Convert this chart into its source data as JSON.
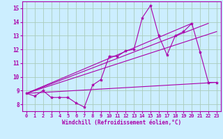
{
  "xlabel": "Windchill (Refroidissement éolien,°C)",
  "bg_color": "#cceeff",
  "grid_color": "#aaccbb",
  "line_color": "#aa00aa",
  "xlim": [
    -0.5,
    23.5
  ],
  "ylim": [
    7.5,
    15.5
  ],
  "yticks": [
    8,
    9,
    10,
    11,
    12,
    13,
    14,
    15
  ],
  "xticks": [
    0,
    1,
    2,
    3,
    4,
    5,
    6,
    7,
    8,
    9,
    10,
    11,
    12,
    13,
    14,
    15,
    16,
    17,
    18,
    19,
    20,
    21,
    22,
    23
  ],
  "main_x": [
    0,
    1,
    2,
    3,
    4,
    5,
    6,
    7,
    8,
    9,
    10,
    11,
    12,
    13,
    14,
    15,
    16,
    17,
    18,
    19,
    20,
    21,
    22,
    23
  ],
  "main_y": [
    8.8,
    8.6,
    9.0,
    8.5,
    8.5,
    8.5,
    8.1,
    7.8,
    9.4,
    9.8,
    11.5,
    11.5,
    11.9,
    12.0,
    14.3,
    15.2,
    13.0,
    11.6,
    13.0,
    13.3,
    13.9,
    11.8,
    9.6,
    9.6
  ],
  "trend_lines": [
    [
      [
        0,
        23
      ],
      [
        8.8,
        9.6
      ]
    ],
    [
      [
        0,
        23
      ],
      [
        8.8,
        13.3
      ]
    ],
    [
      [
        0,
        22
      ],
      [
        8.8,
        13.9
      ]
    ],
    [
      [
        0,
        20
      ],
      [
        8.8,
        13.9
      ]
    ]
  ]
}
